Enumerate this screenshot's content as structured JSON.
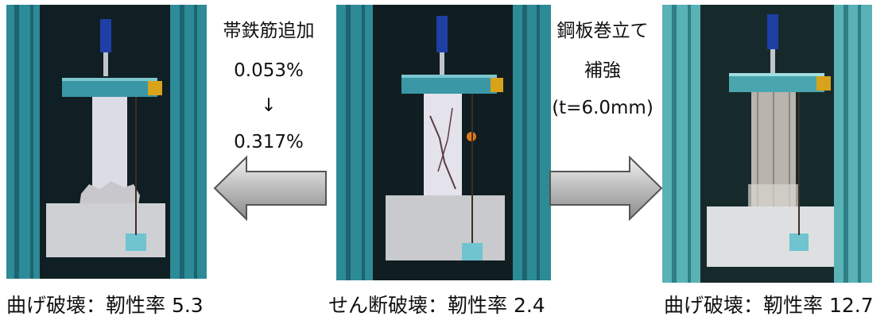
{
  "panels": {
    "left": {
      "caption": "曲げ破壊：靭性率 5.3",
      "frame_color": "#2a7f8f",
      "specimen_color": "#dcdce6"
    },
    "center": {
      "caption": "せん断破壊：靭性率 2.4",
      "frame_color": "#2a7f8f",
      "specimen_color": "#e4e2ea"
    },
    "right": {
      "caption": "曲げ破壊：靭性率 12.7",
      "frame_color": "#3f9aa3",
      "specimen_color": "#b9b4ae"
    }
  },
  "left_note": {
    "line1": "帯鉄筋追加",
    "line2": "0.053%",
    "arrow": "↓",
    "line3": "0.317%"
  },
  "right_note": {
    "line1": "鋼板巻立て",
    "line2": "補強",
    "line3": "(t=6.0mm)"
  },
  "arrows": {
    "left": "left-arrow-icon",
    "right": "right-arrow-icon"
  }
}
